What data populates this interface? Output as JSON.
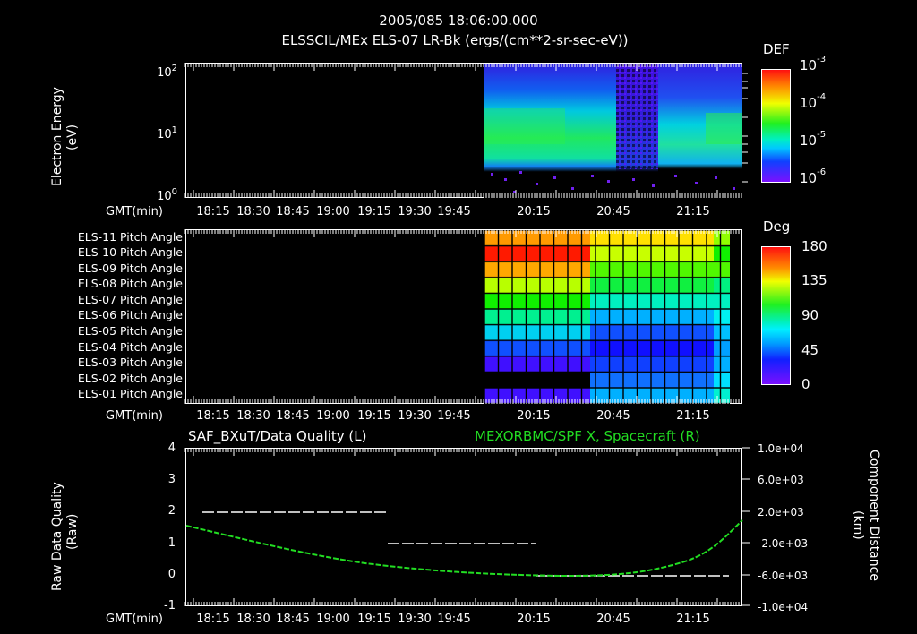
{
  "header": {
    "datetime": "2005/085 18:06:00.000",
    "title": "ELSSCIL/MEx ELS-07 LR-Bk  (ergs/(cm**2-sr-sec-eV))"
  },
  "time_axis": {
    "label": "GMT(min)",
    "ticks_panels_1_2": [
      "18:15",
      "18:30",
      "18:45",
      "19:00",
      "19:15",
      "19:30",
      "19:45",
      "20:15",
      "20:45",
      "21:15"
    ],
    "ticks_panel_3": [
      "18:15",
      "18:30",
      "18:45",
      "19:00",
      "19:15",
      "19:30",
      "19:45",
      "20:15",
      "20:45",
      "21:15"
    ]
  },
  "panel1": {
    "ylabel": "Electron Energy",
    "yunit": "(eV)",
    "yticks": [
      {
        "base": "10",
        "exp": "2"
      },
      {
        "base": "10",
        "exp": "1"
      },
      {
        "base": "10",
        "exp": "0"
      }
    ],
    "colorbar": {
      "title": "DEF",
      "ticks": [
        {
          "base": "10",
          "exp": "-3"
        },
        {
          "base": "10",
          "exp": "-4"
        },
        {
          "base": "10",
          "exp": "-5"
        },
        {
          "base": "10",
          "exp": "-6"
        }
      ]
    }
  },
  "panel2": {
    "rows": [
      "ELS-11 Pitch Angle",
      "ELS-10 Pitch Angle",
      "ELS-09 Pitch Angle",
      "ELS-08 Pitch Angle",
      "ELS-07 Pitch Angle",
      "ELS-06 Pitch Angle",
      "ELS-05 Pitch Angle",
      "ELS-04 Pitch Angle",
      "ELS-03 Pitch Angle",
      "ELS-02 Pitch Angle",
      "ELS-01 Pitch Angle"
    ],
    "colorbar": {
      "title": "Deg",
      "ticks": [
        "180",
        "135",
        "90",
        "45",
        "0"
      ]
    }
  },
  "panel3": {
    "left_title": "SAF_BXuT/Data Quality (L)",
    "right_title": "MEXORBMC/SPF X, Spacecraft (R)",
    "right_title_color": "#22dd22",
    "ylabel_left": "Raw Data Quality",
    "yunit_left": "(Raw)",
    "yticks_left": [
      "4",
      "3",
      "2",
      "1",
      "0",
      "-1"
    ],
    "ylabel_right": "Component Distance",
    "yunit_right": "(km)",
    "yticks_right": [
      "1.0e+04",
      "6.0e+03",
      "2.0e+03",
      "-2.0e+03",
      "-6.0e+03",
      "-1.0e+04"
    ]
  },
  "chart_data": [
    {
      "type": "heatmap",
      "title": "ELSSCIL/MEx ELS-07 LR-Bk (ergs/(cm**2-sr-sec-eV))",
      "xlabel": "GMT(min)",
      "ylabel": "Electron Energy (eV)",
      "yscale": "log",
      "ylim": [
        1,
        150
      ],
      "x_ticks": [
        "18:15",
        "18:30",
        "18:45",
        "19:00",
        "19:15",
        "19:30",
        "19:45",
        "20:15",
        "20:45",
        "21:15"
      ],
      "data_start": "20:03",
      "data_end": "21:35",
      "colorbar": {
        "label": "DEF",
        "scale": "log",
        "range": [
          1e-06,
          0.001
        ]
      },
      "notes": "Data only after ~20:03; flux ~1e-4 (green) between ~4-30 eV from 20:03-20:35; dropout/low flux ~20:37-20:57; recovery ~20:58-21:35 with green band ~4-20 eV"
    },
    {
      "type": "heatmap",
      "title": "ELS Pitch Angles",
      "xlabel": "GMT(min)",
      "categories": [
        "ELS-11",
        "ELS-10",
        "ELS-09",
        "ELS-08",
        "ELS-07",
        "ELS-06",
        "ELS-05",
        "ELS-04",
        "ELS-03",
        "ELS-02",
        "ELS-01"
      ],
      "colorbar": {
        "label": "Deg",
        "range": [
          0,
          180
        ],
        "ticks": [
          0,
          45,
          90,
          135,
          180
        ]
      },
      "segments": [
        {
          "time": "20:03-20:30",
          "values_deg": [
            150,
            175,
            150,
            125,
            105,
            85,
            65,
            40,
            20,
            null,
            15
          ]
        },
        {
          "time": "20:32-21:30",
          "values_deg": [
            130,
            120,
            105,
            100,
            85,
            55,
            35,
            20,
            25,
            35,
            55
          ]
        }
      ]
    },
    {
      "type": "line",
      "title": "SAF_BXuT/Data Quality (L) ; MEXORBMC/SPF X, Spacecraft (R)",
      "xlabel": "GMT(min)",
      "ylabel": "Raw Data Quality (Raw)",
      "ylim": [
        -1,
        4
      ],
      "y2label": "Component Distance (km)",
      "y2lim": [
        -10000,
        10000
      ],
      "series": [
        {
          "name": "Data Quality (L)",
          "color": "#ffffff",
          "style": "dashed",
          "x": [
            "18:10",
            "19:18",
            "19:18",
            "20:15",
            "20:15",
            "21:35"
          ],
          "y": [
            2,
            2,
            1,
            1,
            0,
            0
          ]
        },
        {
          "name": "SPF X, Spacecraft (R)",
          "color": "#22dd22",
          "style": "dotted",
          "x": [
            "18:05",
            "18:30",
            "19:00",
            "19:30",
            "20:00",
            "20:15",
            "20:30",
            "20:45",
            "21:00",
            "21:15",
            "21:30",
            "21:42"
          ],
          "y": [
            -800,
            -2200,
            -3600,
            -4800,
            -5700,
            -6000,
            -6000,
            -5600,
            -4600,
            -3000,
            -700,
            800
          ]
        }
      ]
    }
  ]
}
